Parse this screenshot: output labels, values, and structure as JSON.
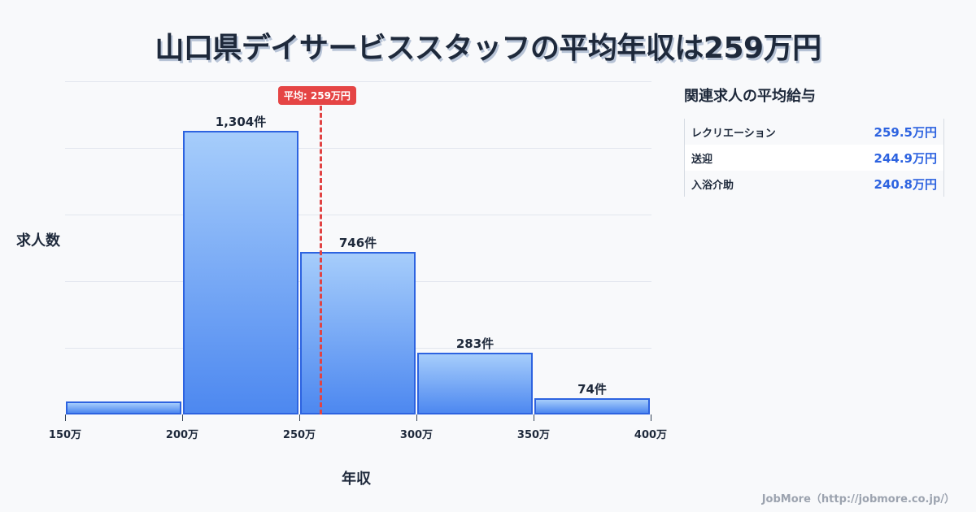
{
  "title": "山口県デイサービススタッフの平均年収は259万円",
  "chart_data": {
    "type": "bar",
    "title": "山口県デイサービススタッフの平均年収は259万円",
    "xlabel": "年収",
    "ylabel": "求人数",
    "categories": [
      "150万-200万",
      "200万-250万",
      "250万-300万",
      "300万-350万",
      "350万-400万"
    ],
    "bin_edges": [
      150,
      200,
      250,
      300,
      350,
      400
    ],
    "values": [
      60,
      1304,
      746,
      283,
      74
    ],
    "value_labels": [
      "",
      "1,304件",
      "746件",
      "283件",
      "74件"
    ],
    "x_tick_labels": [
      "150万",
      "200万",
      "250万",
      "300万",
      "350万",
      "400万"
    ],
    "ylim": [
      0,
      1530
    ],
    "grid": true,
    "average": {
      "value": 259,
      "label": "平均: 259万円",
      "color": "#e54545"
    },
    "bar_color": "#4d88f0",
    "bar_border_color": "#2d63e0"
  },
  "sidebar": {
    "title": "関連求人の平均給与",
    "rows": [
      {
        "name": "レクリエーション",
        "value": "259.5万円"
      },
      {
        "name": "送迎",
        "value": "244.9万円"
      },
      {
        "name": "入浴介助",
        "value": "240.8万円"
      }
    ]
  },
  "footer": "JobMore（http://jobmore.co.jp/）"
}
